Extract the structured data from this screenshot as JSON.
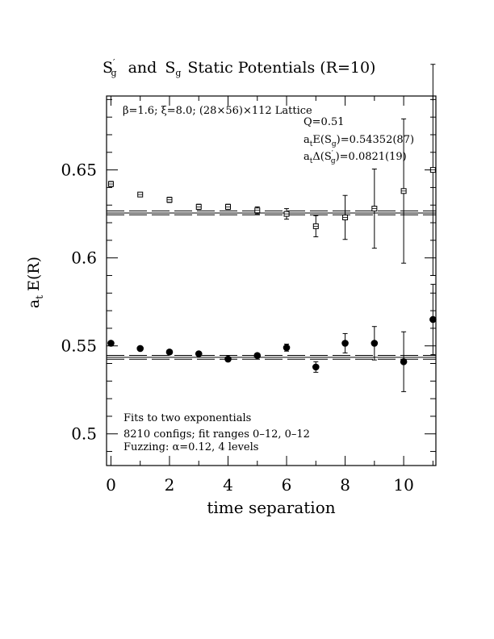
{
  "chart_data": {
    "type": "scatter",
    "title": {
      "s1": "S",
      "s1_sup": "′",
      "s1_sub": "g",
      "and": "and",
      "s2": "S",
      "s2_sub": "g",
      "rest": "Static Potentials (R=10)"
    },
    "xlabel": "time separation",
    "ylabel": {
      "main": "a",
      "sub": "t",
      "rest": "E(R)"
    },
    "xlim": [
      -0.15,
      11.1
    ],
    "ylim": [
      0.482,
      0.692
    ],
    "x_ticks": [
      0,
      2,
      4,
      6,
      8,
      10
    ],
    "x_tick_labels": [
      "0",
      "2",
      "4",
      "6",
      "8",
      "10"
    ],
    "y_ticks": [
      0.5,
      0.55,
      0.6,
      0.65
    ],
    "y_tick_labels": [
      "0.5",
      "0.55",
      "0.6",
      "0.65"
    ],
    "annotations": {
      "lattice": "β=1.6; ξ=8.0; (28×56)×112 Lattice",
      "q": "Q=0.51",
      "energy": {
        "a": "a",
        "sub": "t",
        "mid": "E(S",
        "sub2": "g",
        "end": ")=0.54352(87)"
      },
      "gap": {
        "a": "a",
        "sub": "t",
        "mid": "Δ(S",
        "sup": "′",
        "sub2": "g",
        "end": ")=0.0821(19)"
      },
      "fit1": "Fits to two exponentials",
      "fit2": "8210 configs; fit ranges 0–12, 0–12",
      "fit3": "Fuzzing: α=0.12, 4 levels"
    },
    "series": [
      {
        "marker": "open-square",
        "x": [
          0,
          1,
          2,
          3,
          4,
          5,
          6,
          7,
          8,
          9,
          10,
          11
        ],
        "y": [
          0.642,
          0.636,
          0.633,
          0.629,
          0.629,
          0.627,
          0.625,
          0.618,
          0.623,
          0.628,
          0.638,
          0.65
        ],
        "err": [
          0.0015,
          0.001,
          0.0015,
          0.0015,
          0.0015,
          0.002,
          0.003,
          0.006,
          0.0125,
          0.0225,
          0.041,
          0.06
        ],
        "fit": {
          "center": 0.6255,
          "band": [
            0.6245,
            0.6267
          ],
          "x_from": -0.15,
          "x_to": 11.1
        }
      },
      {
        "marker": "filled-circle",
        "x": [
          0,
          1,
          2,
          3,
          4,
          5,
          6,
          7,
          8,
          9,
          10,
          11
        ],
        "y": [
          0.5515,
          0.5485,
          0.5465,
          0.5455,
          0.5425,
          0.5445,
          0.549,
          0.538,
          0.5515,
          0.5515,
          0.541,
          0.565
        ],
        "err": [
          0.001,
          0.001,
          0.001,
          0.001,
          0.001,
          0.001,
          0.002,
          0.003,
          0.0055,
          0.0095,
          0.017,
          0.02
        ],
        "fit": {
          "center": 0.5435,
          "band": [
            0.5424,
            0.5446
          ],
          "x_from": -0.15,
          "x_to": 11.1
        }
      }
    ]
  }
}
